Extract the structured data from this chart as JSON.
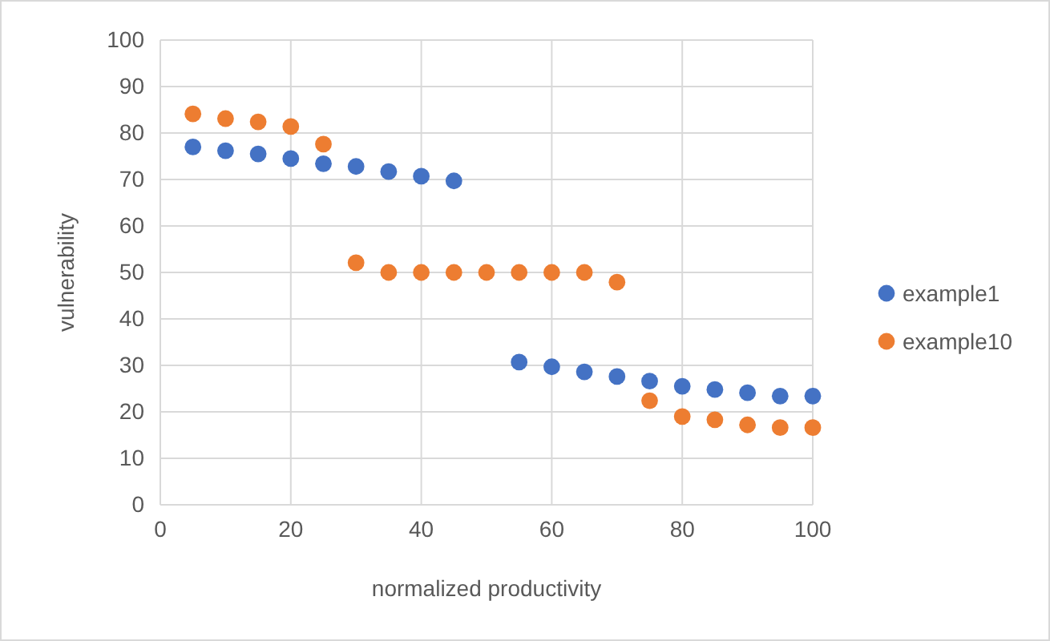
{
  "chart_data": {
    "type": "scatter",
    "xlabel": "normalized productivity",
    "ylabel": "vulnerability",
    "xlim": [
      0,
      100
    ],
    "xticks": [
      0,
      20,
      40,
      60,
      80,
      100
    ],
    "ylim": [
      0,
      100
    ],
    "yticks": [
      0,
      10,
      20,
      30,
      40,
      50,
      60,
      70,
      80,
      90,
      100
    ],
    "grid": true,
    "legend": "right",
    "marker": "circle",
    "series": [
      {
        "name": "example1",
        "color": "#4472c4",
        "x": [
          5,
          10,
          15,
          20,
          25,
          30,
          35,
          40,
          45,
          55,
          60,
          65,
          70,
          75,
          80,
          85,
          90,
          95,
          100
        ],
        "values": [
          77,
          76.2,
          75.5,
          74.5,
          73.4,
          72.8,
          71.7,
          70.7,
          69.7,
          30.7,
          29.7,
          28.6,
          27.6,
          26.6,
          25.5,
          24.8,
          24.1,
          23.4,
          23.4
        ]
      },
      {
        "name": "example10",
        "color": "#ed7d31",
        "x": [
          5,
          10,
          15,
          20,
          25,
          30,
          35,
          40,
          45,
          50,
          55,
          60,
          65,
          70,
          75,
          80,
          85,
          90,
          95,
          100
        ],
        "values": [
          84.1,
          83.1,
          82.4,
          81.4,
          77.6,
          52.1,
          50,
          50,
          50,
          50,
          50,
          50,
          50,
          47.9,
          22.4,
          19,
          18.3,
          17.2,
          16.6,
          16.6
        ]
      }
    ]
  }
}
